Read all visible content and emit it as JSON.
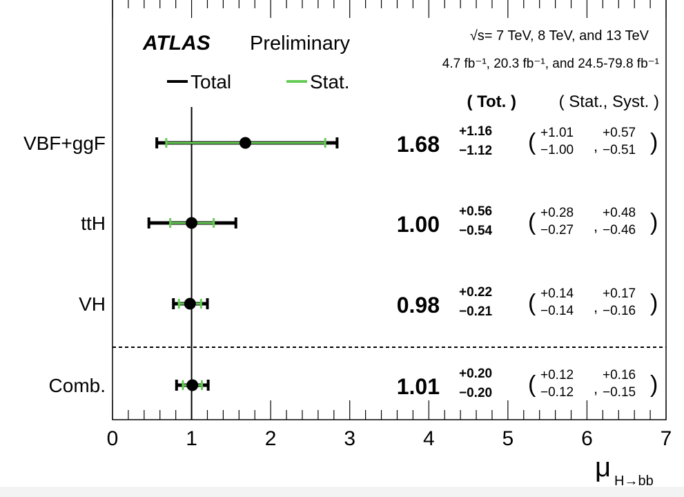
{
  "chart_data": {
    "type": "scatter",
    "subtype": "forest-plot",
    "experiment": "ATLAS",
    "label": "Preliminary",
    "energy_text": "√s= 7 TeV, 8 TeV, and 13 TeV",
    "lumi_text": "4.7 fb⁻¹, 20.3 fb⁻¹, and 24.5-79.8 fb⁻¹",
    "legend": [
      {
        "name": "Total",
        "color": "#000000"
      },
      {
        "name": "Stat.",
        "color": "#66cc55"
      }
    ],
    "legend_placement": "top-left",
    "col_header_tot": "( Tot. )",
    "col_header_statsyst": "( Stat., Syst. )",
    "xlabel": "μ",
    "xlabel_sub": "H→bb",
    "xlim": [
      0,
      7
    ],
    "xticks": [
      "0",
      "1",
      "2",
      "3",
      "4",
      "5",
      "6",
      "7"
    ],
    "reference_line": 1,
    "rows": [
      {
        "name": "VBF+ggF",
        "value": 1.68,
        "value_text": "1.68",
        "tot_up": "+1.16",
        "tot_dn": "−1.12",
        "stat_up": "+1.01",
        "stat_dn": "−1.00",
        "syst_up": "+0.57",
        "syst_dn": "−0.51",
        "tot": [
          1.16,
          1.12
        ],
        "stat": [
          1.01,
          1.0
        ]
      },
      {
        "name": "ttH",
        "value": 1.0,
        "value_text": "1.00",
        "tot_up": "+0.56",
        "tot_dn": "−0.54",
        "stat_up": "+0.28",
        "stat_dn": "−0.27",
        "syst_up": "+0.48",
        "syst_dn": "−0.46",
        "tot": [
          0.56,
          0.54
        ],
        "stat": [
          0.28,
          0.27
        ]
      },
      {
        "name": "VH",
        "value": 0.98,
        "value_text": "0.98",
        "tot_up": "+0.22",
        "tot_dn": "−0.21",
        "stat_up": "+0.14",
        "stat_dn": "−0.14",
        "syst_up": "+0.17",
        "syst_dn": "−0.16",
        "tot": [
          0.22,
          0.21
        ],
        "stat": [
          0.14,
          0.14
        ]
      },
      {
        "name": "Comb.",
        "value": 1.01,
        "value_text": "1.01",
        "tot_up": "+0.20",
        "tot_dn": "−0.20",
        "stat_up": "+0.12",
        "stat_dn": "−0.12",
        "syst_up": "+0.16",
        "syst_dn": "−0.15",
        "tot": [
          0.2,
          0.2
        ],
        "stat": [
          0.12,
          0.12
        ]
      }
    ]
  }
}
